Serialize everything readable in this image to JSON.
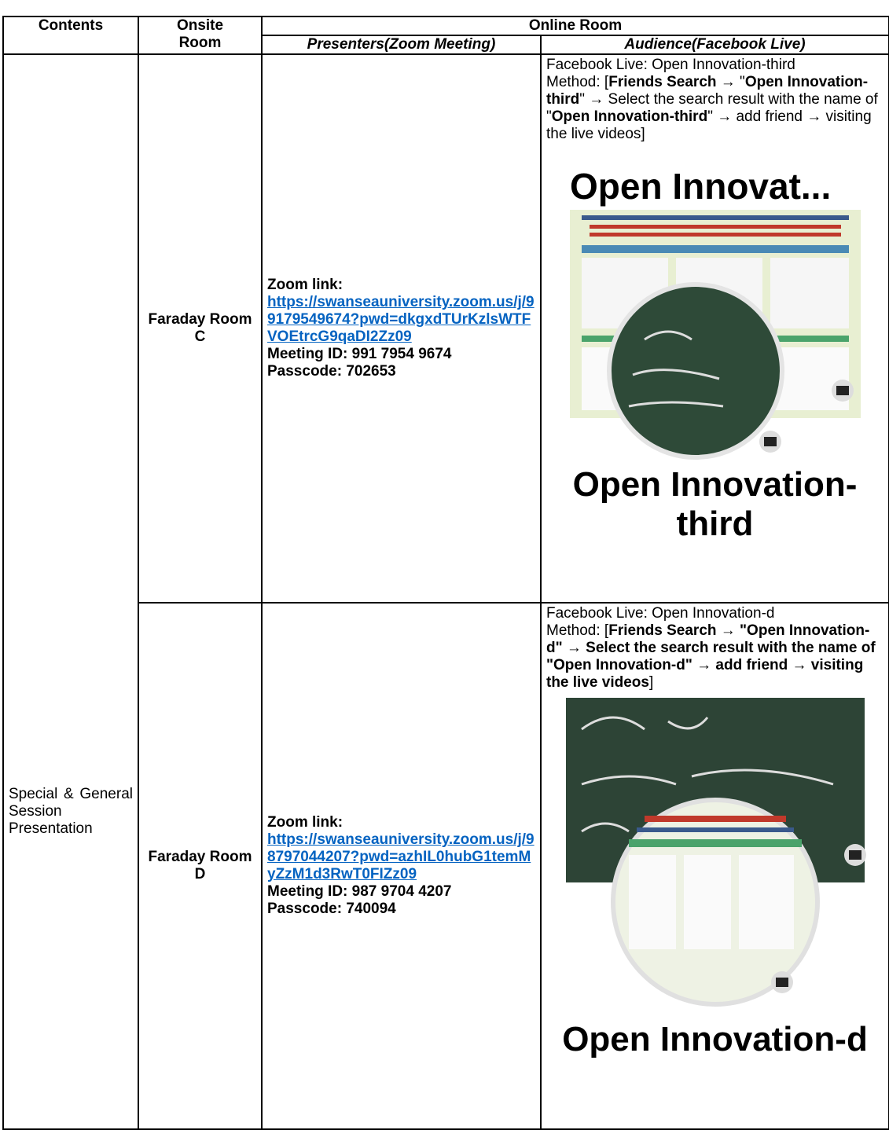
{
  "header": {
    "contents": "Contents",
    "onsite_room": "Onsite Room",
    "online_room": "Online Room",
    "presenters": "Presenters(Zoom Meeting)",
    "audience": "Audience(Facebook Live)"
  },
  "session": "Special & General Session Presentation",
  "rows": [
    {
      "onsite_room": "Faraday Room C",
      "zoom_label": "Zoom link:",
      "zoom_url": "https://swanseauniversity.zoom.us/j/99179549674?pwd=dkgxdTUrKzlsWTFVOEtrcG9qaDI2Zz09",
      "meeting_id": "Meeting ID: 991 7954 9674",
      "passcode": "Passcode: 702653",
      "facebook_live": "Facebook Live: Open Innovation-third",
      "method": [
        {
          "text": "Method: [",
          "bold": false
        },
        {
          "text": "Friends Search",
          "bold": true
        },
        {
          "text": " → \"",
          "bold": false
        },
        {
          "text": "Open Innovation-third",
          "bold": true
        },
        {
          "text": "\" → Select the search result with the name of \"",
          "bold": false
        },
        {
          "text": "Open Innovation-third",
          "bold": true
        },
        {
          "text": "\" → add friend → visiting the live videos]",
          "bold": false
        }
      ],
      "image_header": "Open Innovat...",
      "profile_name": "Open Innovation-third"
    },
    {
      "onsite_room": "Faraday Room D",
      "zoom_label": "Zoom link:",
      "zoom_url": "https://swanseauniversity.zoom.us/j/98797044207?pwd=azhIL0hubG1temMyZzM1d3RwT0FIZz09",
      "meeting_id": "Meeting ID: 987 9704 4207",
      "passcode": "Passcode: 740094",
      "facebook_live": "Facebook Live: Open Innovation-d",
      "method": [
        {
          "text": "Method: [",
          "bold": false
        },
        {
          "text": "Friends Search → \"Open Innovation-d\" → Select the search result with the name of \"Open Innovation-d\" → add friend → visiting the live videos",
          "bold": true
        },
        {
          "text": "]",
          "bold": false
        }
      ],
      "profile_name": "Open Innovation-d"
    }
  ]
}
